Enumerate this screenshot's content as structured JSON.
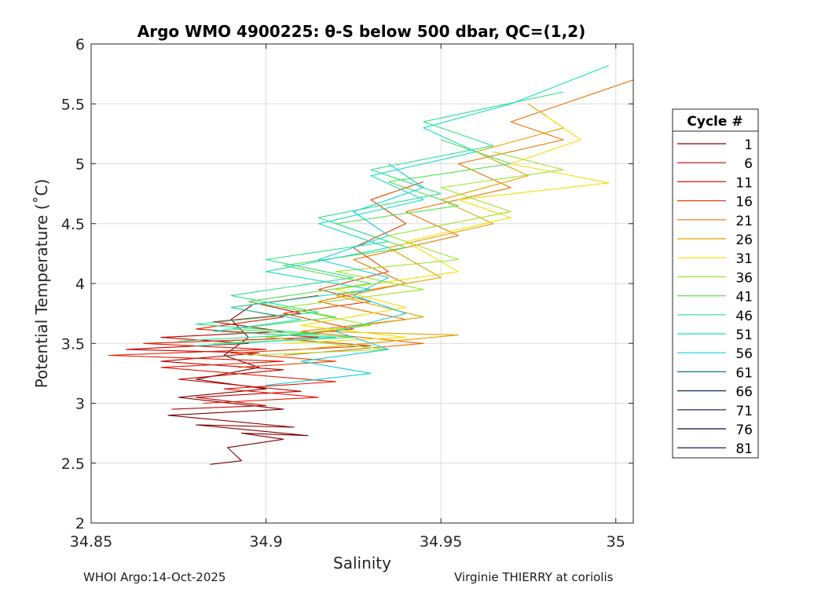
{
  "chart_data": {
    "type": "line",
    "title": "Argo WMO 4900225: θ-S below 500 dbar,  QC=(1,2)",
    "xlabel": "Salinity",
    "ylabel": "Potential Temperature (˚C)",
    "xlim": [
      34.85,
      35.005
    ],
    "ylim": [
      2,
      6
    ],
    "xticks": [
      34.85,
      34.9,
      34.95,
      35
    ],
    "xtick_labels": [
      "34.85",
      "34.9",
      "34.95",
      "35"
    ],
    "yticks": [
      2,
      2.5,
      3,
      3.5,
      4,
      4.5,
      5,
      5.5,
      6
    ],
    "ytick_labels": [
      "2",
      "2.5",
      "3",
      "3.5",
      "4",
      "4.5",
      "5",
      "5.5",
      "6"
    ],
    "grid": true,
    "legend_title": "Cycle #",
    "legend_position": "outside-right",
    "legend": [
      {
        "label": "1",
        "color": "#800000"
      },
      {
        "label": "6",
        "color": "#c00000"
      },
      {
        "label": "11",
        "color": "#e01a00"
      },
      {
        "label": "16",
        "color": "#e83f00"
      },
      {
        "label": "21",
        "color": "#ec7000"
      },
      {
        "label": "26",
        "color": "#e6a100"
      },
      {
        "label": "31",
        "color": "#f0e000"
      },
      {
        "label": "36",
        "color": "#9ae42a"
      },
      {
        "label": "41",
        "color": "#55e050"
      },
      {
        "label": "46",
        "color": "#2ee08a"
      },
      {
        "label": "51",
        "color": "#16e0c0"
      },
      {
        "label": "56",
        "color": "#12cfe2"
      },
      {
        "label": "61",
        "color": "#0a6f96"
      },
      {
        "label": "66",
        "color": "#0a2f66"
      },
      {
        "label": "71",
        "color": "#07154e"
      },
      {
        "label": "76",
        "color": "#070f3e"
      },
      {
        "label": "81",
        "color": "#000060"
      }
    ],
    "series": [
      {
        "name": "1",
        "color": "#800000",
        "points": [
          [
            34.884,
            2.49
          ],
          [
            34.893,
            2.52
          ],
          [
            34.889,
            2.63
          ],
          [
            34.905,
            2.7
          ],
          [
            34.893,
            2.75
          ],
          [
            34.912,
            2.73
          ],
          [
            34.88,
            2.82
          ],
          [
            34.908,
            2.8
          ],
          [
            34.872,
            2.9
          ],
          [
            34.905,
            2.95
          ],
          [
            34.875,
            3.05
          ],
          [
            34.9,
            3.12
          ],
          [
            34.88,
            3.2
          ],
          [
            34.898,
            3.3
          ],
          [
            34.888,
            3.4
          ],
          [
            34.895,
            3.55
          ],
          [
            34.89,
            3.7
          ],
          [
            34.896,
            3.82
          ]
        ]
      },
      {
        "name": "6",
        "color": "#c00000",
        "points": [
          [
            34.873,
            2.95
          ],
          [
            34.9,
            2.98
          ],
          [
            34.88,
            3.05
          ],
          [
            34.91,
            3.1
          ],
          [
            34.875,
            3.2
          ],
          [
            34.905,
            3.28
          ],
          [
            34.87,
            3.35
          ],
          [
            34.898,
            3.42
          ],
          [
            34.86,
            3.45
          ],
          [
            34.895,
            3.5
          ],
          [
            34.87,
            3.55
          ],
          [
            34.905,
            3.6
          ],
          [
            34.885,
            3.68
          ],
          [
            34.91,
            3.75
          ],
          [
            34.895,
            3.85
          ]
        ]
      },
      {
        "name": "11",
        "color": "#e01a00",
        "points": [
          [
            34.882,
            3.0
          ],
          [
            34.915,
            3.05
          ],
          [
            34.888,
            3.12
          ],
          [
            34.92,
            3.18
          ],
          [
            34.87,
            3.3
          ],
          [
            34.905,
            3.35
          ],
          [
            34.855,
            3.4
          ],
          [
            34.9,
            3.45
          ],
          [
            34.865,
            3.5
          ],
          [
            34.915,
            3.55
          ],
          [
            34.88,
            3.62
          ],
          [
            34.905,
            3.72
          ],
          [
            34.89,
            3.8
          ],
          [
            34.915,
            3.9
          ]
        ]
      },
      {
        "name": "16",
        "color": "#e83f00",
        "points": [
          [
            34.892,
            3.3
          ],
          [
            34.92,
            3.35
          ],
          [
            34.89,
            3.42
          ],
          [
            34.93,
            3.48
          ],
          [
            34.9,
            3.55
          ],
          [
            34.925,
            3.62
          ],
          [
            34.905,
            3.75
          ],
          [
            34.93,
            3.85
          ],
          [
            34.915,
            3.95
          ],
          [
            34.935,
            4.1
          ],
          [
            34.925,
            4.3
          ],
          [
            34.94,
            4.5
          ],
          [
            34.93,
            4.7
          ],
          [
            34.945,
            4.85
          ]
        ]
      },
      {
        "name": "21",
        "color": "#ec7000",
        "points": [
          [
            34.905,
            3.4
          ],
          [
            34.945,
            3.5
          ],
          [
            34.91,
            3.6
          ],
          [
            34.94,
            3.7
          ],
          [
            34.915,
            3.85
          ],
          [
            34.94,
            4.0
          ],
          [
            34.925,
            4.2
          ],
          [
            34.955,
            4.4
          ],
          [
            34.94,
            4.6
          ],
          [
            34.97,
            4.8
          ],
          [
            34.955,
            5.0
          ],
          [
            34.985,
            5.2
          ],
          [
            34.97,
            5.35
          ],
          [
            35.005,
            5.7
          ]
        ]
      },
      {
        "name": "26",
        "color": "#e6a100",
        "points": [
          [
            34.91,
            3.45
          ],
          [
            34.955,
            3.57
          ],
          [
            34.915,
            3.6
          ],
          [
            34.945,
            3.72
          ],
          [
            34.92,
            3.9
          ],
          [
            34.95,
            4.05
          ],
          [
            34.935,
            4.3
          ],
          [
            34.965,
            4.5
          ],
          [
            34.95,
            4.7
          ],
          [
            34.975,
            4.9
          ],
          [
            34.96,
            5.1
          ],
          [
            34.985,
            5.3
          ],
          [
            34.975,
            5.5
          ]
        ]
      },
      {
        "name": "31",
        "color": "#f0e000",
        "points": [
          [
            34.905,
            3.5
          ],
          [
            34.94,
            3.55
          ],
          [
            34.91,
            3.65
          ],
          [
            34.94,
            3.8
          ],
          [
            34.92,
            3.95
          ],
          [
            34.955,
            4.1
          ],
          [
            34.94,
            4.35
          ],
          [
            34.97,
            4.55
          ],
          [
            34.955,
            4.7
          ],
          [
            34.998,
            4.84
          ],
          [
            34.97,
            5.0
          ],
          [
            34.99,
            5.2
          ],
          [
            34.98,
            5.4
          ]
        ]
      },
      {
        "name": "36",
        "color": "#9ae42a",
        "points": [
          [
            34.895,
            3.4
          ],
          [
            34.935,
            3.45
          ],
          [
            34.9,
            3.55
          ],
          [
            34.93,
            3.65
          ],
          [
            34.905,
            3.8
          ],
          [
            34.945,
            3.95
          ],
          [
            34.92,
            4.1
          ],
          [
            34.955,
            4.2
          ],
          [
            34.935,
            4.4
          ],
          [
            34.97,
            4.6
          ],
          [
            34.95,
            4.8
          ],
          [
            34.985,
            4.95
          ],
          [
            34.965,
            5.1
          ]
        ]
      },
      {
        "name": "41",
        "color": "#55e050",
        "points": [
          [
            34.885,
            3.5
          ],
          [
            34.925,
            3.55
          ],
          [
            34.89,
            3.62
          ],
          [
            34.92,
            3.72
          ],
          [
            34.895,
            3.85
          ],
          [
            34.93,
            4.0
          ],
          [
            34.905,
            4.15
          ],
          [
            34.94,
            4.3
          ],
          [
            34.92,
            4.5
          ],
          [
            34.955,
            4.65
          ],
          [
            34.935,
            4.85
          ],
          [
            34.97,
            5.0
          ],
          [
            34.95,
            5.2
          ]
        ]
      },
      {
        "name": "46",
        "color": "#2ee08a",
        "points": [
          [
            34.875,
            3.52
          ],
          [
            34.915,
            3.58
          ],
          [
            34.88,
            3.66
          ],
          [
            34.915,
            3.76
          ],
          [
            34.89,
            3.9
          ],
          [
            34.925,
            4.05
          ],
          [
            34.9,
            4.2
          ],
          [
            34.935,
            4.35
          ],
          [
            34.915,
            4.55
          ],
          [
            34.95,
            4.75
          ],
          [
            34.93,
            4.95
          ],
          [
            34.965,
            5.15
          ],
          [
            34.945,
            5.35
          ],
          [
            34.985,
            5.6
          ]
        ]
      },
      {
        "name": "51",
        "color": "#16e0c0",
        "points": [
          [
            34.88,
            3.48
          ],
          [
            34.92,
            3.55
          ],
          [
            34.885,
            3.6
          ],
          [
            34.91,
            3.7
          ],
          [
            34.89,
            3.8
          ],
          [
            34.93,
            3.95
          ],
          [
            34.9,
            4.1
          ],
          [
            34.935,
            4.3
          ],
          [
            34.915,
            4.5
          ],
          [
            34.945,
            4.7
          ],
          [
            34.93,
            4.9
          ],
          [
            34.96,
            5.1
          ],
          [
            34.945,
            5.3
          ],
          [
            34.97,
            5.5
          ],
          [
            34.998,
            5.82
          ]
        ]
      },
      {
        "name": "56",
        "color": "#12cfe2",
        "points": [
          [
            34.9,
            3.15
          ],
          [
            34.93,
            3.25
          ],
          [
            34.91,
            3.35
          ],
          [
            34.935,
            3.45
          ],
          [
            34.92,
            3.6
          ],
          [
            34.94,
            3.75
          ],
          [
            34.925,
            3.9
          ],
          [
            34.935,
            4.05
          ],
          [
            34.915,
            4.2
          ],
          [
            34.935,
            4.4
          ],
          [
            34.925,
            4.6
          ],
          [
            34.945,
            4.8
          ],
          [
            34.935,
            5.0
          ]
        ]
      },
      {
        "name": "61",
        "color": "#0a6f96",
        "points": []
      },
      {
        "name": "66",
        "color": "#0a2f66",
        "points": []
      },
      {
        "name": "71",
        "color": "#07154e",
        "points": []
      },
      {
        "name": "76",
        "color": "#070f3e",
        "points": []
      },
      {
        "name": "81",
        "color": "#000060",
        "points": []
      }
    ]
  },
  "footer": {
    "left": "WHOI Argo:14-Oct-2025",
    "right": "Virginie THIERRY at coriolis"
  }
}
